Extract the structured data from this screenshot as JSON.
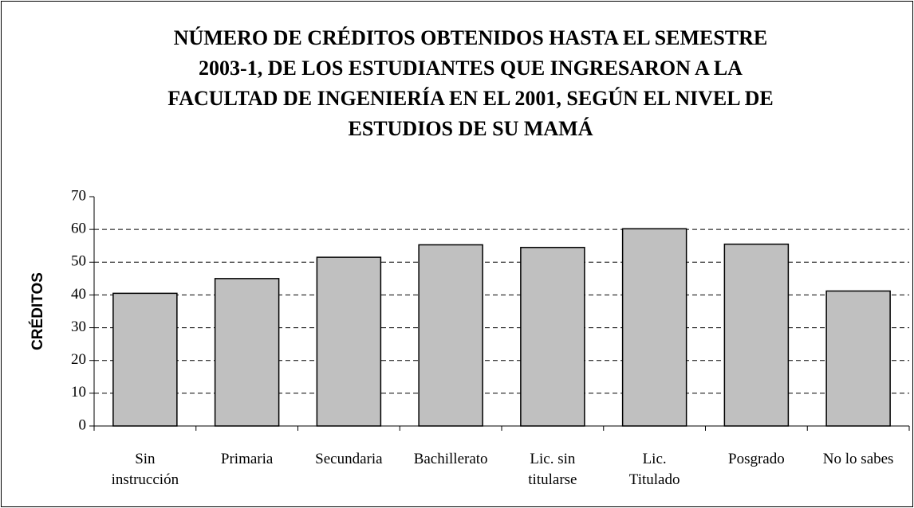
{
  "chart_data": {
    "type": "bar",
    "title": [
      "NÚMERO DE CRÉDITOS OBTENIDOS HASTA EL SEMESTRE",
      "2003-1, DE LOS ESTUDIANTES QUE INGRESARON A LA",
      "FACULTAD DE INGENIERÍA EN EL 2001, SEGÚN EL NIVEL DE",
      "ESTUDIOS DE SU MAMÁ"
    ],
    "y_label": "CRÉDITOS",
    "categories": [
      [
        "Sin",
        "instrucción"
      ],
      [
        "Primaria"
      ],
      [
        "Secundaria"
      ],
      [
        "Bachillerato"
      ],
      [
        "Lic. sin",
        "titularse"
      ],
      [
        "Lic.",
        "Titulado"
      ],
      [
        "Posgrado"
      ],
      [
        "No lo sabes"
      ]
    ],
    "values": [
      40.5,
      45,
      51.5,
      55.3,
      54.5,
      60.2,
      55.5,
      41.2
    ],
    "color": "#c0c0c0",
    "ylim": [
      0,
      70
    ],
    "yticks": [
      0,
      10,
      20,
      30,
      40,
      50,
      60,
      70
    ],
    "grid": true
  }
}
